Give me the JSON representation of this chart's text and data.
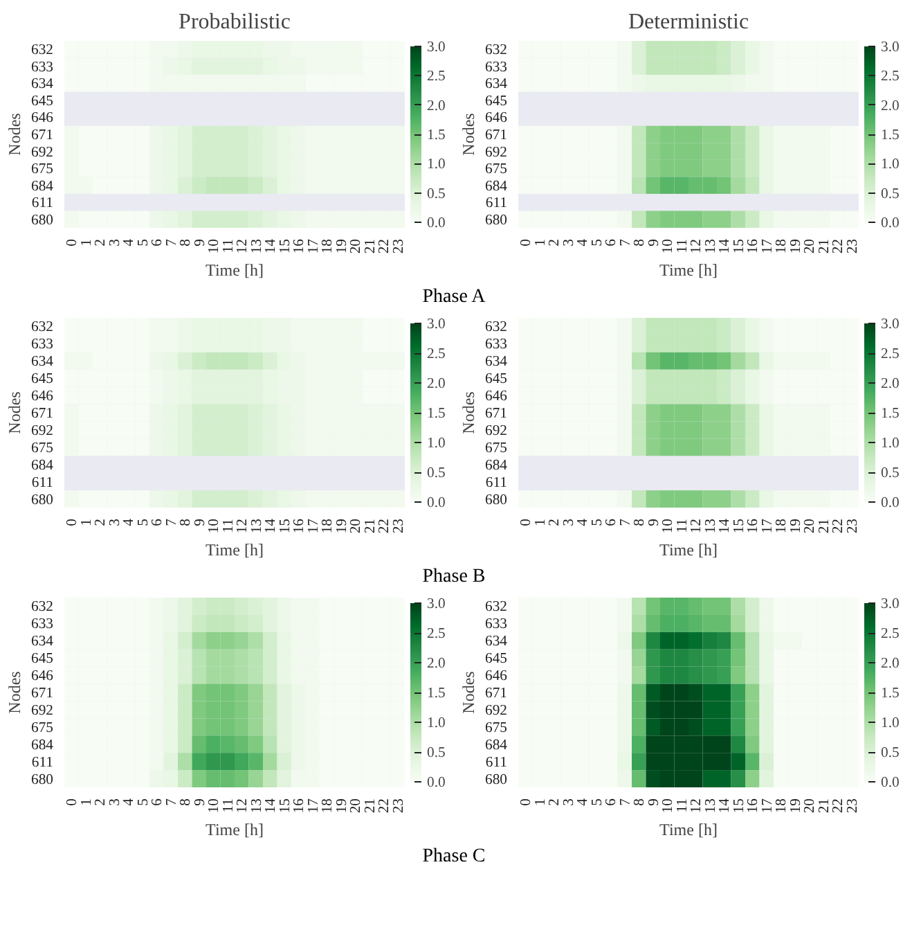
{
  "chart_data": [
    {
      "type": "heatmap",
      "title": "Probabilistic",
      "xlabel": "Time [h]",
      "ylabel": "Nodes",
      "clim": [
        0,
        3
      ],
      "cticks": [
        {
          "value": 0,
          "label": "0.0"
        },
        {
          "value": 0.5,
          "label": "0.5"
        },
        {
          "value": 1,
          "label": "1.0"
        },
        {
          "value": 1.5,
          "label": "1.5"
        },
        {
          "value": 2,
          "label": "2.0"
        },
        {
          "value": 2.5,
          "label": "2.5"
        },
        {
          "value": 3,
          "label": "3.0"
        }
      ],
      "annotations": [
        "Phase A"
      ],
      "categories": [
        "0",
        "1",
        "2",
        "3",
        "4",
        "5",
        "6",
        "7",
        "8",
        "9",
        "10",
        "11",
        "12",
        "13",
        "14",
        "15",
        "16",
        "17",
        "18",
        "19",
        "20",
        "21",
        "22",
        "23"
      ],
      "y_categories": [
        "632",
        "633",
        "634",
        "645",
        "646",
        "671",
        "692",
        "675",
        "684",
        "611",
        "680"
      ],
      "cells": [
        [
          0,
          0,
          0,
          0,
          0,
          0,
          0.1,
          0.1,
          0.2,
          0.3,
          0.3,
          0.3,
          0.3,
          0.3,
          0.2,
          0.2,
          0.1,
          0.1,
          0.1,
          0.1,
          0.1,
          0,
          0,
          0
        ],
        [
          0,
          0,
          0,
          0,
          0,
          0,
          0.1,
          0.2,
          0.3,
          0.4,
          0.4,
          0.4,
          0.4,
          0.4,
          0.3,
          0.2,
          0.2,
          0.1,
          0.1,
          0.1,
          0.1,
          0,
          0,
          0
        ],
        [
          0,
          0,
          0,
          0,
          0,
          0,
          0.1,
          0.1,
          0.1,
          0.1,
          0.1,
          0.1,
          0.1,
          0.1,
          0.1,
          0.1,
          0.1,
          0,
          0,
          0,
          0,
          0,
          0,
          0
        ],
        [
          null,
          null,
          null,
          null,
          null,
          null,
          null,
          null,
          null,
          null,
          null,
          null,
          null,
          null,
          null,
          null,
          null,
          null,
          null,
          null,
          null,
          null,
          null,
          null
        ],
        [
          null,
          null,
          null,
          null,
          null,
          null,
          null,
          null,
          null,
          null,
          null,
          null,
          null,
          null,
          null,
          null,
          null,
          null,
          null,
          null,
          null,
          null,
          null,
          null
        ],
        [
          0.1,
          0,
          0,
          0,
          0,
          0,
          0.2,
          0.3,
          0.4,
          0.6,
          0.6,
          0.6,
          0.6,
          0.5,
          0.4,
          0.3,
          0.2,
          0.1,
          0.1,
          0.1,
          0.1,
          0.1,
          0.1,
          0.1
        ],
        [
          0.1,
          0,
          0,
          0,
          0,
          0,
          0.2,
          0.3,
          0.4,
          0.6,
          0.6,
          0.6,
          0.6,
          0.5,
          0.4,
          0.3,
          0.2,
          0.1,
          0.1,
          0.1,
          0.1,
          0.1,
          0.1,
          0.1
        ],
        [
          0.1,
          0,
          0,
          0,
          0,
          0,
          0.2,
          0.3,
          0.4,
          0.6,
          0.6,
          0.6,
          0.6,
          0.5,
          0.4,
          0.3,
          0.2,
          0.1,
          0.1,
          0.1,
          0.1,
          0.1,
          0.1,
          0.1
        ],
        [
          0.1,
          0.1,
          0,
          0,
          0,
          0,
          0.2,
          0.3,
          0.5,
          0.7,
          0.8,
          0.8,
          0.8,
          0.7,
          0.5,
          0.3,
          0.2,
          0.1,
          0.1,
          0.1,
          0.1,
          0.1,
          0.1,
          0.1
        ],
        [
          null,
          null,
          null,
          null,
          null,
          null,
          null,
          null,
          null,
          null,
          null,
          null,
          null,
          null,
          null,
          null,
          null,
          null,
          null,
          null,
          null,
          null,
          null,
          null
        ],
        [
          0.1,
          0,
          0,
          0,
          0,
          0,
          0.2,
          0.3,
          0.4,
          0.6,
          0.6,
          0.6,
          0.6,
          0.5,
          0.4,
          0.3,
          0.2,
          0.1,
          0.1,
          0.1,
          0.1,
          0.1,
          0.1,
          0.1
        ]
      ]
    },
    {
      "type": "heatmap",
      "title": "Deterministic",
      "xlabel": "Time [h]",
      "ylabel": "Nodes",
      "clim": [
        0,
        3
      ],
      "cticks": [
        {
          "value": 0,
          "label": "0.0"
        },
        {
          "value": 0.5,
          "label": "0.5"
        },
        {
          "value": 1,
          "label": "1.0"
        },
        {
          "value": 1.5,
          "label": "1.5"
        },
        {
          "value": 2,
          "label": "2.0"
        },
        {
          "value": 2.5,
          "label": "2.5"
        },
        {
          "value": 3,
          "label": "3.0"
        }
      ],
      "categories": [
        "0",
        "1",
        "2",
        "3",
        "4",
        "5",
        "6",
        "7",
        "8",
        "9",
        "10",
        "11",
        "12",
        "13",
        "14",
        "15",
        "16",
        "17",
        "18",
        "19",
        "20",
        "21",
        "22",
        "23"
      ],
      "y_categories": [
        "632",
        "633",
        "634",
        "645",
        "646",
        "671",
        "692",
        "675",
        "684",
        "611",
        "680"
      ],
      "cells": [
        [
          0,
          0,
          0,
          0,
          0,
          0,
          0,
          0.1,
          0.5,
          0.8,
          0.8,
          0.8,
          0.8,
          0.8,
          0.7,
          0.5,
          0.3,
          0.1,
          0,
          0,
          0,
          0,
          0,
          0
        ],
        [
          0,
          0,
          0,
          0,
          0,
          0,
          0,
          0.1,
          0.5,
          0.8,
          0.8,
          0.8,
          0.8,
          0.8,
          0.7,
          0.5,
          0.3,
          0.1,
          0,
          0,
          0,
          0,
          0,
          0
        ],
        [
          0,
          0,
          0,
          0,
          0,
          0,
          0,
          0.1,
          0.2,
          0.3,
          0.3,
          0.3,
          0.3,
          0.3,
          0.3,
          0.2,
          0.1,
          0.1,
          0,
          0,
          0,
          0,
          0,
          0
        ],
        [
          null,
          null,
          null,
          null,
          null,
          null,
          null,
          null,
          null,
          null,
          null,
          null,
          null,
          null,
          null,
          null,
          null,
          null,
          null,
          null,
          null,
          null,
          null,
          null
        ],
        [
          null,
          null,
          null,
          null,
          null,
          null,
          null,
          null,
          null,
          null,
          null,
          null,
          null,
          null,
          null,
          null,
          null,
          null,
          null,
          null,
          null,
          null,
          null,
          null
        ],
        [
          0,
          0,
          0,
          0,
          0,
          0,
          0,
          0.1,
          0.8,
          1.3,
          1.4,
          1.4,
          1.4,
          1.3,
          1.3,
          1.0,
          0.7,
          0.3,
          0.1,
          0.1,
          0.1,
          0.1,
          0,
          0
        ],
        [
          0,
          0,
          0,
          0,
          0,
          0,
          0,
          0.1,
          0.8,
          1.3,
          1.4,
          1.4,
          1.4,
          1.3,
          1.3,
          1.0,
          0.7,
          0.3,
          0.1,
          0.1,
          0.1,
          0.1,
          0,
          0
        ],
        [
          0,
          0,
          0,
          0,
          0,
          0,
          0,
          0.1,
          0.8,
          1.3,
          1.4,
          1.4,
          1.4,
          1.3,
          1.3,
          1.0,
          0.7,
          0.3,
          0.1,
          0.1,
          0.1,
          0.1,
          0,
          0
        ],
        [
          0,
          0,
          0,
          0,
          0,
          0,
          0,
          0.1,
          0.9,
          1.5,
          1.7,
          1.7,
          1.6,
          1.6,
          1.5,
          1.1,
          0.8,
          0.3,
          0.1,
          0.1,
          0.1,
          0.1,
          0,
          0
        ],
        [
          null,
          null,
          null,
          null,
          null,
          null,
          null,
          null,
          null,
          null,
          null,
          null,
          null,
          null,
          null,
          null,
          null,
          null,
          null,
          null,
          null,
          null,
          null,
          null
        ],
        [
          0,
          0,
          0,
          0,
          0,
          0,
          0,
          0.1,
          0.8,
          1.3,
          1.4,
          1.4,
          1.4,
          1.3,
          1.3,
          1.0,
          0.7,
          0.3,
          0.1,
          0.1,
          0.1,
          0.1,
          0,
          0
        ]
      ]
    },
    {
      "type": "heatmap",
      "xlabel": "Time [h]",
      "ylabel": "Nodes",
      "clim": [
        0,
        3
      ],
      "cticks": [
        {
          "value": 0,
          "label": "0.0"
        },
        {
          "value": 0.5,
          "label": "0.5"
        },
        {
          "value": 1,
          "label": "1.0"
        },
        {
          "value": 1.5,
          "label": "1.5"
        },
        {
          "value": 2,
          "label": "2.0"
        },
        {
          "value": 2.5,
          "label": "2.5"
        },
        {
          "value": 3,
          "label": "3.0"
        }
      ],
      "annotations": [
        "Phase B"
      ],
      "categories": [
        "0",
        "1",
        "2",
        "3",
        "4",
        "5",
        "6",
        "7",
        "8",
        "9",
        "10",
        "11",
        "12",
        "13",
        "14",
        "15",
        "16",
        "17",
        "18",
        "19",
        "20",
        "21",
        "22",
        "23"
      ],
      "y_categories": [
        "632",
        "633",
        "634",
        "645",
        "646",
        "671",
        "692",
        "675",
        "684",
        "611",
        "680"
      ],
      "cells": [
        [
          0,
          0,
          0,
          0,
          0,
          0,
          0.1,
          0.1,
          0.2,
          0.3,
          0.3,
          0.3,
          0.3,
          0.3,
          0.2,
          0.2,
          0.1,
          0.1,
          0.1,
          0.1,
          0.1,
          0,
          0,
          0
        ],
        [
          0,
          0,
          0,
          0,
          0,
          0,
          0.1,
          0.1,
          0.2,
          0.3,
          0.3,
          0.3,
          0.3,
          0.3,
          0.2,
          0.2,
          0.1,
          0.1,
          0.1,
          0.1,
          0.1,
          0,
          0,
          0
        ],
        [
          0.1,
          0.1,
          0,
          0,
          0,
          0,
          0.2,
          0.3,
          0.5,
          0.7,
          0.8,
          0.8,
          0.8,
          0.7,
          0.5,
          0.3,
          0.2,
          0.1,
          0.1,
          0.1,
          0.1,
          0.1,
          0.1,
          0.1
        ],
        [
          0,
          0,
          0,
          0,
          0,
          0,
          0.1,
          0.2,
          0.3,
          0.4,
          0.4,
          0.4,
          0.4,
          0.4,
          0.3,
          0.2,
          0.2,
          0.1,
          0.1,
          0.1,
          0.1,
          0,
          0,
          0
        ],
        [
          0,
          0,
          0,
          0,
          0,
          0,
          0.1,
          0.2,
          0.3,
          0.4,
          0.4,
          0.4,
          0.4,
          0.4,
          0.3,
          0.2,
          0.2,
          0.1,
          0.1,
          0.1,
          0.1,
          0,
          0,
          0
        ],
        [
          0.1,
          0,
          0,
          0,
          0,
          0,
          0.2,
          0.3,
          0.4,
          0.6,
          0.6,
          0.6,
          0.6,
          0.5,
          0.4,
          0.3,
          0.2,
          0.1,
          0.1,
          0.1,
          0.1,
          0.1,
          0.1,
          0.1
        ],
        [
          0.1,
          0,
          0,
          0,
          0,
          0,
          0.2,
          0.3,
          0.4,
          0.6,
          0.6,
          0.6,
          0.6,
          0.5,
          0.4,
          0.3,
          0.2,
          0.1,
          0.1,
          0.1,
          0.1,
          0.1,
          0.1,
          0.1
        ],
        [
          0.1,
          0,
          0,
          0,
          0,
          0,
          0.2,
          0.3,
          0.4,
          0.6,
          0.6,
          0.6,
          0.6,
          0.5,
          0.4,
          0.3,
          0.2,
          0.1,
          0.1,
          0.1,
          0.1,
          0.1,
          0.1,
          0.1
        ],
        [
          null,
          null,
          null,
          null,
          null,
          null,
          null,
          null,
          null,
          null,
          null,
          null,
          null,
          null,
          null,
          null,
          null,
          null,
          null,
          null,
          null,
          null,
          null,
          null
        ],
        [
          null,
          null,
          null,
          null,
          null,
          null,
          null,
          null,
          null,
          null,
          null,
          null,
          null,
          null,
          null,
          null,
          null,
          null,
          null,
          null,
          null,
          null,
          null,
          null
        ],
        [
          0.1,
          0,
          0,
          0,
          0,
          0,
          0.2,
          0.3,
          0.4,
          0.6,
          0.6,
          0.6,
          0.6,
          0.5,
          0.4,
          0.3,
          0.2,
          0.1,
          0.1,
          0.1,
          0.1,
          0.1,
          0.1,
          0.1
        ]
      ]
    },
    {
      "type": "heatmap",
      "xlabel": "Time [h]",
      "ylabel": "Nodes",
      "clim": [
        0,
        3
      ],
      "cticks": [
        {
          "value": 0,
          "label": "0.0"
        },
        {
          "value": 0.5,
          "label": "0.5"
        },
        {
          "value": 1,
          "label": "1.0"
        },
        {
          "value": 1.5,
          "label": "1.5"
        },
        {
          "value": 2,
          "label": "2.0"
        },
        {
          "value": 2.5,
          "label": "2.5"
        },
        {
          "value": 3,
          "label": "3.0"
        }
      ],
      "categories": [
        "0",
        "1",
        "2",
        "3",
        "4",
        "5",
        "6",
        "7",
        "8",
        "9",
        "10",
        "11",
        "12",
        "13",
        "14",
        "15",
        "16",
        "17",
        "18",
        "19",
        "20",
        "21",
        "22",
        "23"
      ],
      "y_categories": [
        "632",
        "633",
        "634",
        "645",
        "646",
        "671",
        "692",
        "675",
        "684",
        "611",
        "680"
      ],
      "cells": [
        [
          0,
          0,
          0,
          0,
          0,
          0,
          0,
          0.1,
          0.5,
          0.8,
          0.8,
          0.8,
          0.8,
          0.8,
          0.7,
          0.5,
          0.3,
          0.1,
          0,
          0,
          0,
          0,
          0,
          0
        ],
        [
          0,
          0,
          0,
          0,
          0,
          0,
          0,
          0.1,
          0.5,
          0.8,
          0.8,
          0.8,
          0.8,
          0.8,
          0.7,
          0.5,
          0.3,
          0.1,
          0,
          0,
          0,
          0,
          0,
          0
        ],
        [
          0,
          0,
          0,
          0,
          0,
          0,
          0,
          0.1,
          0.9,
          1.5,
          1.7,
          1.7,
          1.6,
          1.6,
          1.5,
          1.1,
          0.8,
          0.3,
          0.1,
          0.1,
          0.1,
          0.1,
          0,
          0
        ],
        [
          0,
          0,
          0,
          0,
          0,
          0,
          0,
          0.1,
          0.5,
          0.8,
          0.8,
          0.8,
          0.8,
          0.8,
          0.7,
          0.5,
          0.3,
          0.1,
          0,
          0,
          0,
          0,
          0,
          0
        ],
        [
          0,
          0,
          0,
          0,
          0,
          0,
          0,
          0.1,
          0.5,
          0.8,
          0.8,
          0.8,
          0.8,
          0.8,
          0.7,
          0.5,
          0.3,
          0.1,
          0,
          0,
          0,
          0,
          0,
          0
        ],
        [
          0,
          0,
          0,
          0,
          0,
          0,
          0,
          0.1,
          0.8,
          1.3,
          1.4,
          1.4,
          1.4,
          1.3,
          1.3,
          1.0,
          0.7,
          0.3,
          0.1,
          0.1,
          0.1,
          0.1,
          0,
          0
        ],
        [
          0,
          0,
          0,
          0,
          0,
          0,
          0,
          0.1,
          0.8,
          1.3,
          1.4,
          1.4,
          1.4,
          1.3,
          1.3,
          1.0,
          0.7,
          0.3,
          0.1,
          0.1,
          0.1,
          0.1,
          0,
          0
        ],
        [
          0,
          0,
          0,
          0,
          0,
          0,
          0,
          0.1,
          0.8,
          1.3,
          1.4,
          1.4,
          1.4,
          1.3,
          1.3,
          1.0,
          0.7,
          0.3,
          0.1,
          0.1,
          0.1,
          0.1,
          0,
          0
        ],
        [
          null,
          null,
          null,
          null,
          null,
          null,
          null,
          null,
          null,
          null,
          null,
          null,
          null,
          null,
          null,
          null,
          null,
          null,
          null,
          null,
          null,
          null,
          null,
          null
        ],
        [
          null,
          null,
          null,
          null,
          null,
          null,
          null,
          null,
          null,
          null,
          null,
          null,
          null,
          null,
          null,
          null,
          null,
          null,
          null,
          null,
          null,
          null,
          null,
          null
        ],
        [
          0,
          0,
          0,
          0,
          0,
          0,
          0,
          0.1,
          0.8,
          1.3,
          1.4,
          1.4,
          1.4,
          1.3,
          1.3,
          1.0,
          0.7,
          0.3,
          0.1,
          0.1,
          0.1,
          0.1,
          0,
          0
        ]
      ]
    },
    {
      "type": "heatmap",
      "xlabel": "Time [h]",
      "ylabel": "Nodes",
      "clim": [
        0,
        3
      ],
      "cticks": [
        {
          "value": 0,
          "label": "0.0"
        },
        {
          "value": 0.5,
          "label": "0.5"
        },
        {
          "value": 1,
          "label": "1.0"
        },
        {
          "value": 1.5,
          "label": "1.5"
        },
        {
          "value": 2,
          "label": "2.0"
        },
        {
          "value": 2.5,
          "label": "2.5"
        },
        {
          "value": 3,
          "label": "3.0"
        }
      ],
      "annotations": [
        "Phase C"
      ],
      "categories": [
        "0",
        "1",
        "2",
        "3",
        "4",
        "5",
        "6",
        "7",
        "8",
        "9",
        "10",
        "11",
        "12",
        "13",
        "14",
        "15",
        "16",
        "17",
        "18",
        "19",
        "20",
        "21",
        "22",
        "23"
      ],
      "y_categories": [
        "632",
        "633",
        "634",
        "645",
        "646",
        "671",
        "692",
        "675",
        "684",
        "611",
        "680"
      ],
      "cells": [
        [
          0,
          0,
          0,
          0,
          0,
          0,
          0.1,
          0.2,
          0.4,
          0.6,
          0.7,
          0.7,
          0.6,
          0.5,
          0.4,
          0.2,
          0.1,
          0.1,
          0,
          0,
          0,
          0,
          0,
          0
        ],
        [
          0,
          0,
          0,
          0,
          0,
          0,
          0.1,
          0.2,
          0.4,
          0.7,
          0.8,
          0.8,
          0.7,
          0.6,
          0.4,
          0.2,
          0.1,
          0.1,
          0,
          0,
          0,
          0,
          0,
          0
        ],
        [
          0,
          0,
          0,
          0,
          0,
          0,
          0.1,
          0.3,
          0.6,
          1.1,
          1.3,
          1.3,
          1.2,
          1.0,
          0.6,
          0.3,
          0.1,
          0.1,
          0,
          0,
          0,
          0,
          0,
          0
        ],
        [
          0,
          0,
          0,
          0,
          0,
          0,
          0.1,
          0.3,
          0.5,
          0.9,
          1.1,
          1.1,
          1.0,
          0.9,
          0.6,
          0.3,
          0.1,
          0.1,
          0,
          0,
          0,
          0,
          0,
          0
        ],
        [
          0,
          0,
          0,
          0,
          0,
          0,
          0.1,
          0.3,
          0.5,
          0.9,
          1.1,
          1.1,
          1.0,
          0.9,
          0.6,
          0.3,
          0.1,
          0.1,
          0,
          0,
          0,
          0,
          0,
          0
        ],
        [
          0,
          0,
          0,
          0,
          0,
          0,
          0.1,
          0.3,
          0.7,
          1.4,
          1.5,
          1.5,
          1.4,
          1.2,
          0.8,
          0.4,
          0.2,
          0.1,
          0,
          0,
          0,
          0,
          0,
          0
        ],
        [
          0,
          0,
          0,
          0,
          0,
          0,
          0.1,
          0.3,
          0.7,
          1.4,
          1.5,
          1.5,
          1.4,
          1.2,
          0.8,
          0.4,
          0.2,
          0.1,
          0,
          0,
          0,
          0,
          0,
          0
        ],
        [
          0,
          0,
          0,
          0,
          0,
          0,
          0.1,
          0.3,
          0.7,
          1.4,
          1.5,
          1.5,
          1.4,
          1.2,
          0.8,
          0.4,
          0.2,
          0.1,
          0,
          0,
          0,
          0,
          0,
          0
        ],
        [
          0,
          0,
          0,
          0,
          0,
          0,
          0.1,
          0.3,
          0.7,
          1.6,
          1.8,
          1.7,
          1.6,
          1.4,
          0.9,
          0.4,
          0.2,
          0.1,
          0,
          0,
          0,
          0,
          0,
          0
        ],
        [
          0,
          0,
          0,
          0,
          0,
          0,
          0.1,
          0.4,
          1.0,
          1.9,
          2.1,
          2.1,
          1.9,
          1.7,
          1.1,
          0.5,
          0.2,
          0.1,
          0,
          0,
          0,
          0,
          0,
          0
        ],
        [
          0,
          0,
          0,
          0,
          0,
          0,
          0.2,
          0.3,
          0.7,
          1.4,
          1.6,
          1.6,
          1.5,
          1.2,
          0.8,
          0.4,
          0.1,
          0.1,
          0,
          0,
          0,
          0,
          0,
          0
        ]
      ]
    },
    {
      "type": "heatmap",
      "xlabel": "Time [h]",
      "ylabel": "Nodes",
      "clim": [
        0,
        3
      ],
      "cticks": [
        {
          "value": 0,
          "label": "0.0"
        },
        {
          "value": 0.5,
          "label": "0.5"
        },
        {
          "value": 1,
          "label": "1.0"
        },
        {
          "value": 1.5,
          "label": "1.5"
        },
        {
          "value": 2,
          "label": "2.0"
        },
        {
          "value": 2.5,
          "label": "2.5"
        },
        {
          "value": 3,
          "label": "3.0"
        }
      ],
      "categories": [
        "0",
        "1",
        "2",
        "3",
        "4",
        "5",
        "6",
        "7",
        "8",
        "9",
        "10",
        "11",
        "12",
        "13",
        "14",
        "15",
        "16",
        "17",
        "18",
        "19",
        "20",
        "21",
        "22",
        "23"
      ],
      "y_categories": [
        "632",
        "633",
        "634",
        "645",
        "646",
        "671",
        "692",
        "675",
        "684",
        "611",
        "680"
      ],
      "cells": [
        [
          0,
          0,
          0,
          0,
          0,
          0,
          0,
          0.1,
          0.9,
          1.5,
          1.7,
          1.7,
          1.6,
          1.5,
          1.5,
          1.0,
          0.6,
          0.2,
          0,
          0,
          0,
          0,
          0,
          0
        ],
        [
          0,
          0,
          0,
          0,
          0,
          0,
          0,
          0.1,
          1.0,
          1.6,
          1.8,
          1.8,
          1.7,
          1.6,
          1.6,
          1.1,
          0.6,
          0.2,
          0,
          0,
          0,
          0,
          0,
          0
        ],
        [
          0,
          0,
          0,
          0,
          0,
          0,
          0,
          0.2,
          1.4,
          2.3,
          2.7,
          2.7,
          2.6,
          2.4,
          2.3,
          1.6,
          0.9,
          0.3,
          0.1,
          0.1,
          0,
          0,
          0,
          0
        ],
        [
          0,
          0,
          0,
          0,
          0,
          0,
          0,
          0.1,
          1.2,
          2.1,
          2.3,
          2.3,
          2.2,
          2.1,
          2.0,
          1.5,
          0.9,
          0.3,
          0,
          0,
          0,
          0,
          0,
          0
        ],
        [
          0,
          0,
          0,
          0,
          0,
          0,
          0,
          0.1,
          1.1,
          2.1,
          2.3,
          2.3,
          2.2,
          2.1,
          2.0,
          1.4,
          0.9,
          0.3,
          0,
          0,
          0,
          0,
          0,
          0
        ],
        [
          0,
          0,
          0,
          0,
          0,
          0,
          0,
          0.2,
          1.6,
          2.8,
          3.0,
          3.0,
          2.9,
          2.7,
          2.7,
          2.0,
          1.3,
          0.4,
          0,
          0,
          0,
          0,
          0,
          0
        ],
        [
          0,
          0,
          0,
          0,
          0,
          0,
          0,
          0.2,
          1.6,
          2.9,
          3.0,
          3.0,
          3.0,
          2.7,
          2.7,
          2.0,
          1.3,
          0.4,
          0,
          0,
          0,
          0,
          0,
          0
        ],
        [
          0,
          0,
          0,
          0,
          0,
          0,
          0,
          0.2,
          1.6,
          2.8,
          3.0,
          3.0,
          2.9,
          2.7,
          2.7,
          2.0,
          1.3,
          0.4,
          0,
          0,
          0,
          0,
          0,
          0
        ],
        [
          0,
          0,
          0,
          0,
          0,
          0,
          0,
          0.2,
          1.8,
          3.0,
          3.0,
          3.0,
          3.0,
          3.0,
          3.0,
          2.3,
          1.4,
          0.4,
          0,
          0,
          0,
          0,
          0,
          0
        ],
        [
          0,
          0,
          0,
          0,
          0,
          0,
          0,
          0.3,
          2.0,
          3.0,
          3.0,
          3.0,
          3.0,
          3.0,
          3.0,
          2.7,
          1.7,
          0.5,
          0,
          0,
          0,
          0,
          0,
          0
        ],
        [
          0,
          0,
          0,
          0,
          0,
          0,
          0,
          0.2,
          1.6,
          2.9,
          3.0,
          3.0,
          3.0,
          2.7,
          2.7,
          2.2,
          1.3,
          0.4,
          0,
          0,
          0,
          0,
          0,
          0
        ]
      ]
    }
  ]
}
